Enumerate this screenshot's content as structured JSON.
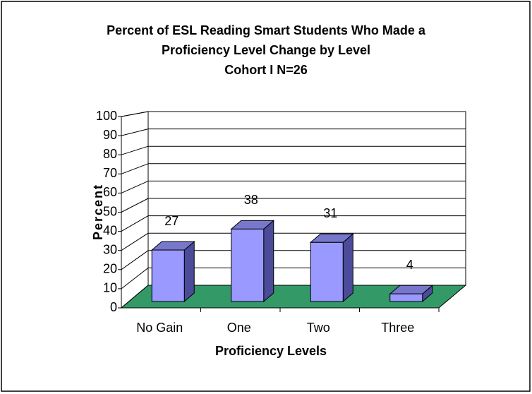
{
  "chart_data": {
    "type": "bar3d",
    "title": [
      "Percent of ESL Reading Smart Students Who Made a",
      "Proficiency Level Change by Level",
      "Cohort I N=26"
    ],
    "x_label": "Proficiency Levels",
    "y_label": "Percent",
    "categories": [
      "No Gain",
      "One",
      "Two",
      "Three"
    ],
    "values": [
      27,
      38,
      31,
      4
    ],
    "color": "#9999ff",
    "floor_color": "#339966",
    "ylim": [
      0,
      100
    ],
    "yticks": [
      0,
      10,
      20,
      30,
      40,
      50,
      60,
      70,
      80,
      90,
      100
    ],
    "grid": true
  }
}
